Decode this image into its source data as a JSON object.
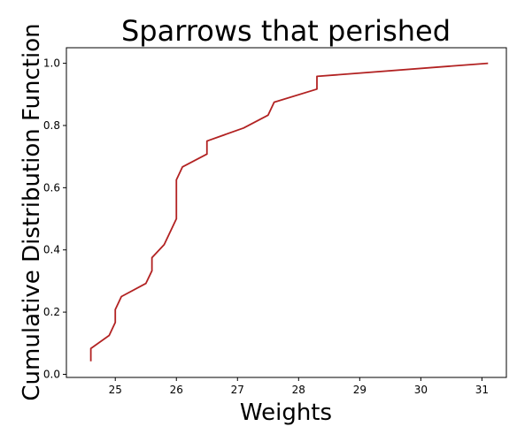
{
  "chart_data": {
    "type": "line",
    "title": "Sparrows that perished",
    "xlabel": "Weights",
    "ylabel": "Cumulative Distribution Function",
    "xlim": [
      24.2,
      31.4
    ],
    "ylim": [
      -0.01,
      1.05
    ],
    "xticks": [
      25,
      26,
      27,
      28,
      29,
      30,
      31
    ],
    "xtick_labels": [
      "25",
      "26",
      "27",
      "28",
      "29",
      "30",
      "31"
    ],
    "yticks": [
      0.0,
      0.2,
      0.4,
      0.6,
      0.8,
      1.0
    ],
    "ytick_labels": [
      "0.0",
      "0.2",
      "0.4",
      "0.6",
      "0.8",
      "1.0"
    ],
    "grid": false,
    "series": [
      {
        "color": "#b22222",
        "x": [
          24.6,
          24.6,
          24.9,
          25.0,
          25.0,
          25.1,
          25.5,
          25.6,
          25.6,
          25.8,
          26.0,
          26.0,
          26.1,
          26.5,
          26.5,
          27.1,
          27.5,
          27.6,
          28.3,
          28.3,
          31.1
        ],
        "y": [
          0.042,
          0.083,
          0.125,
          0.167,
          0.208,
          0.25,
          0.292,
          0.333,
          0.375,
          0.417,
          0.5,
          0.625,
          0.667,
          0.708,
          0.75,
          0.792,
          0.833,
          0.875,
          0.917,
          0.958,
          1.0
        ]
      }
    ]
  }
}
